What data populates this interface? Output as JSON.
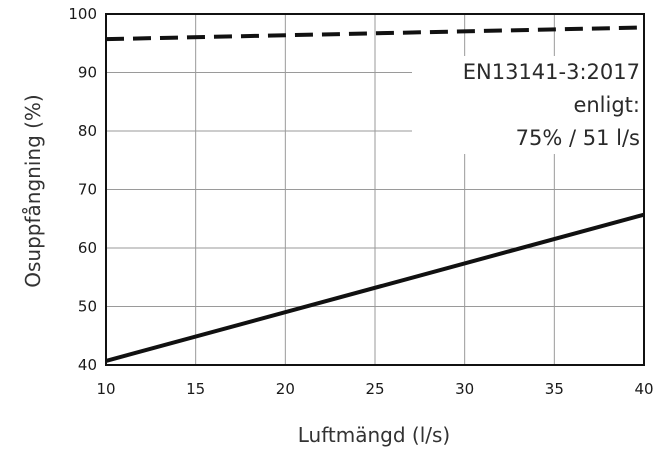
{
  "chart_data": {
    "type": "line",
    "xlabel": "Luftmängd (l/s)",
    "ylabel": "Osuppfångning (%)",
    "xlim": [
      10,
      40
    ],
    "ylim": [
      40,
      100
    ],
    "x_ticks": [
      "10",
      "15",
      "20",
      "25",
      "30",
      "35",
      "40"
    ],
    "y_ticks": [
      "40",
      "50",
      "60",
      "70",
      "80",
      "90",
      "100"
    ],
    "grid": true,
    "series": [
      {
        "style": "dashed",
        "color": "#111111",
        "x": [
          10,
          40
        ],
        "y": [
          95.7,
          97.7
        ]
      },
      {
        "style": "solid",
        "color": "#111111",
        "x": [
          10,
          40
        ],
        "y": [
          40.7,
          65.7
        ]
      }
    ],
    "annotation": {
      "lines": [
        "EN13141-3:2017",
        "enligt:",
        "75% / 51 l/s"
      ]
    }
  }
}
